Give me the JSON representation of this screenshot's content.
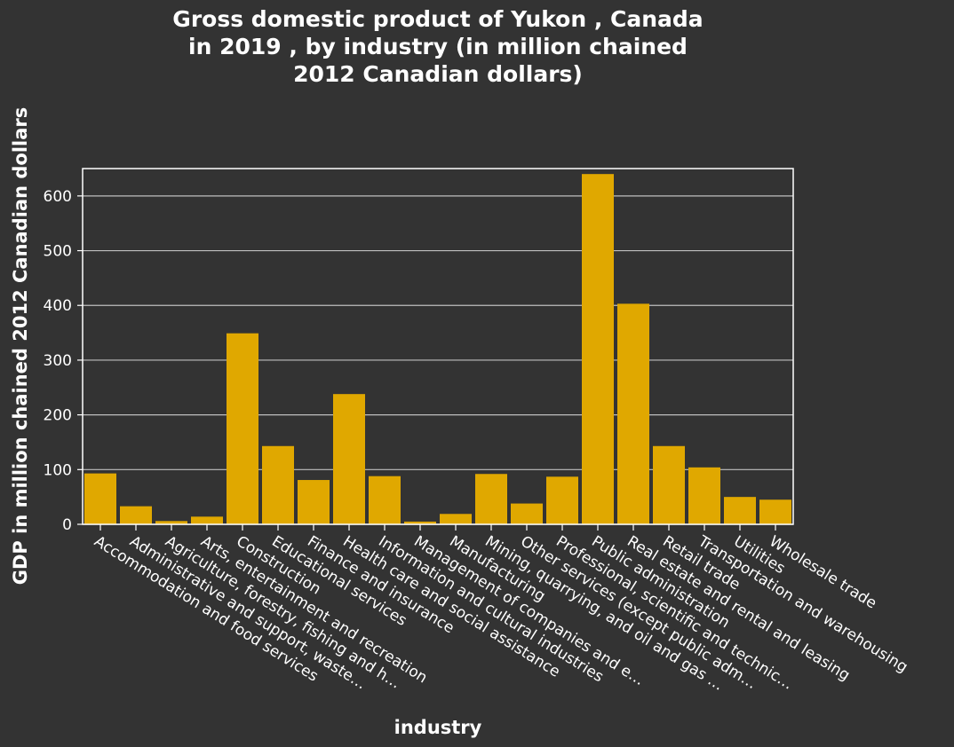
{
  "chart_data": {
    "type": "bar",
    "title_lines": [
      "Gross domestic product of Yukon , Canada",
      "in 2019 , by industry (in million chained",
      "2012 Canadian dollars)"
    ],
    "xlabel": "industry",
    "ylabel": "GDP in million chained 2012 Canadian dollars",
    "ylim": [
      0,
      650
    ],
    "yticks": [
      0,
      100,
      200,
      300,
      400,
      500,
      600
    ],
    "grid": true,
    "bar_color": "#e0a800",
    "categories": [
      "Accommodation and food services",
      "Administrative and support, waste…",
      "Agriculture, forestry, fishing and h…",
      "Arts, entertainment and recreation",
      "Construction",
      "Educational services",
      "Finance and insurance",
      "Health care and social assistance",
      "Information and cultural industries",
      "Management of companies and e…",
      "Manufacturing",
      "Mining, quarrying, and oil and gas …",
      "Other services (except public adm…",
      "Professional, scientific and technic…",
      "Public administration",
      "Real estate and rental and leasing",
      "Retail trade",
      "Transportation and warehousing",
      "Utilities",
      "Wholesale trade"
    ],
    "values": [
      93,
      33,
      6,
      14,
      349,
      143,
      81,
      238,
      88,
      5,
      19,
      92,
      38,
      87,
      640,
      403,
      143,
      104,
      50,
      45
    ]
  }
}
